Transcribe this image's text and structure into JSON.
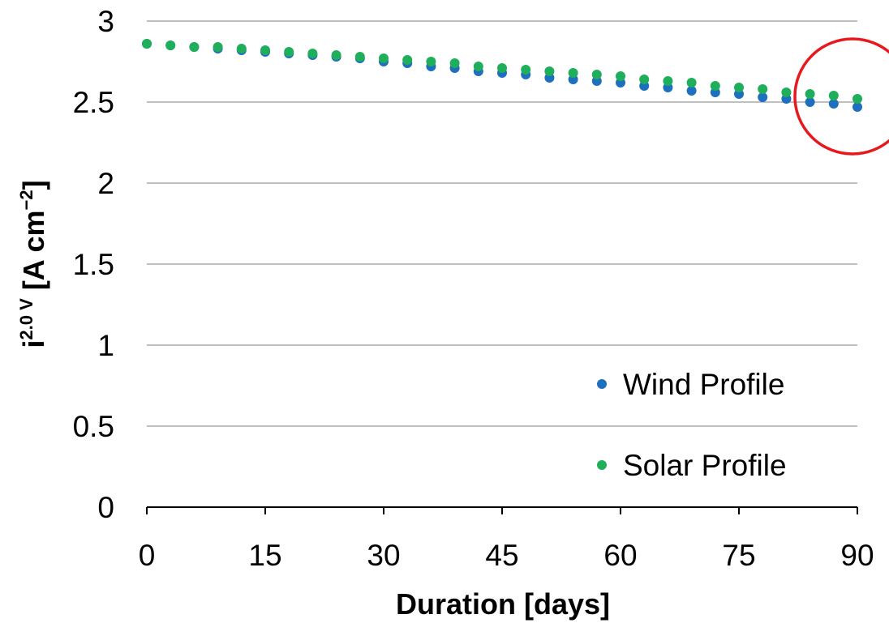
{
  "chart_data": {
    "type": "scatter",
    "title": "",
    "xlabel": "Duration [days]",
    "ylabel": {
      "base": "i",
      "superscript": "2.0 V",
      "unit_open": " [A cm",
      "unit_sup": "−2",
      "unit_close": "]"
    },
    "xlim": [
      0,
      90
    ],
    "ylim": [
      0,
      3
    ],
    "x_ticks": [
      "0",
      "15",
      "30",
      "45",
      "60",
      "75",
      "90"
    ],
    "y_ticks": [
      "0",
      "0.5",
      "1",
      "1.5",
      "2",
      "2.5",
      "3"
    ],
    "grid": "horizontal",
    "legend_position": "bottom-right",
    "x": [
      0,
      3,
      6,
      9,
      12,
      15,
      18,
      21,
      24,
      27,
      30,
      33,
      36,
      39,
      42,
      45,
      48,
      51,
      54,
      57,
      60,
      63,
      66,
      69,
      72,
      75,
      78,
      81,
      84,
      87,
      90
    ],
    "series": [
      {
        "name": "Wind Profile",
        "color": "#1f6fbf",
        "values": [
          2.86,
          2.85,
          2.84,
          2.83,
          2.82,
          2.81,
          2.8,
          2.79,
          2.78,
          2.77,
          2.75,
          2.74,
          2.72,
          2.71,
          2.69,
          2.68,
          2.67,
          2.65,
          2.64,
          2.63,
          2.62,
          2.6,
          2.59,
          2.57,
          2.56,
          2.55,
          2.53,
          2.52,
          2.5,
          2.49,
          2.47
        ]
      },
      {
        "name": "Solar Profile",
        "color": "#1fae5a",
        "values": [
          2.86,
          2.85,
          2.84,
          2.84,
          2.83,
          2.82,
          2.81,
          2.8,
          2.79,
          2.78,
          2.77,
          2.76,
          2.75,
          2.74,
          2.72,
          2.71,
          2.7,
          2.69,
          2.68,
          2.67,
          2.66,
          2.64,
          2.63,
          2.62,
          2.6,
          2.59,
          2.58,
          2.56,
          2.55,
          2.54,
          2.52
        ]
      }
    ],
    "annotations": [
      {
        "type": "circle",
        "color": "#e8191e",
        "x": 90,
        "y": 2.52,
        "note": "highlighted end point"
      }
    ]
  }
}
